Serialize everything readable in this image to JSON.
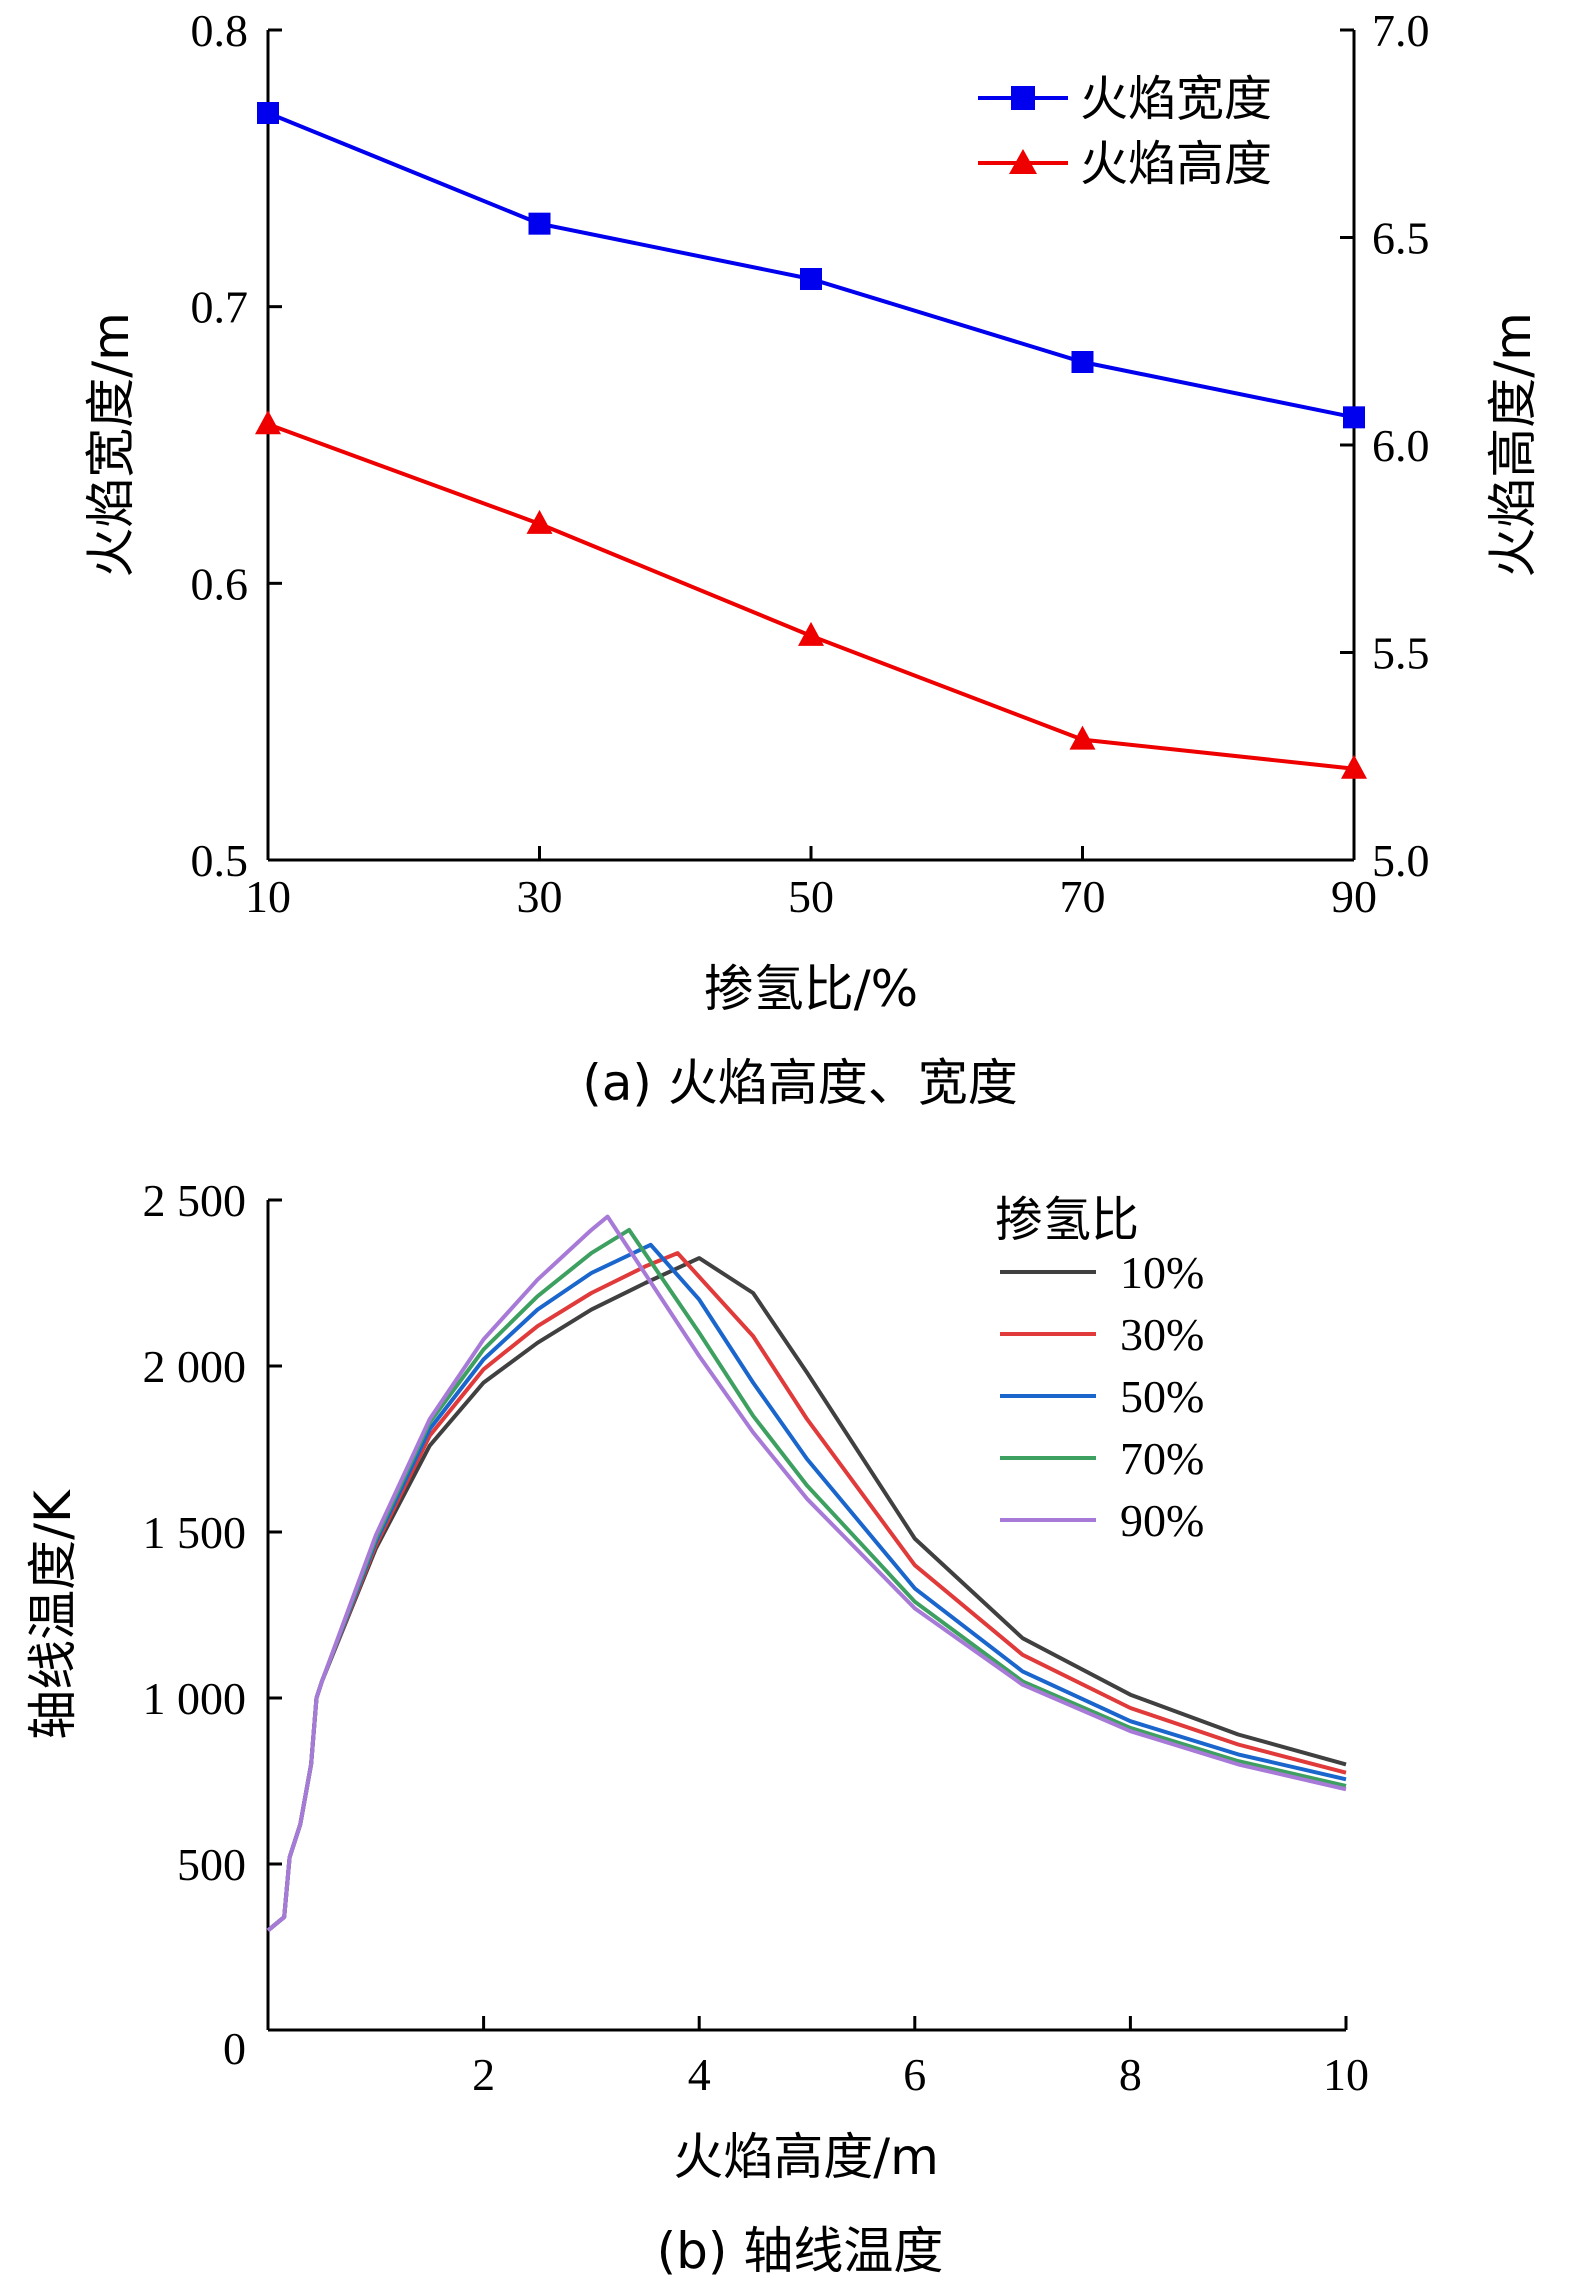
{
  "chart_data": [
    {
      "type": "line",
      "caption": "(a) 火焰高度、宽度",
      "xlabel": "掺氢比/%",
      "ylabel_left": "火焰宽度/m",
      "ylabel_right": "火焰高度/m",
      "x": [
        10,
        30,
        50,
        70,
        90
      ],
      "x_ticks": [
        "10",
        "30",
        "50",
        "70",
        "90"
      ],
      "ylim_left": [
        0.5,
        0.8
      ],
      "y_ticks_left": [
        "0.5",
        "0.6",
        "0.7",
        "0.8"
      ],
      "ylim_right": [
        5.0,
        7.0
      ],
      "y_ticks_right": [
        "5.0",
        "5.5",
        "6.0",
        "6.5",
        "7.0"
      ],
      "legend_position": "top-right",
      "series": [
        {
          "name": "火焰宽度",
          "axis": "left",
          "color": "#0000ee",
          "marker": "square",
          "values": [
            0.77,
            0.73,
            0.71,
            0.68,
            0.66
          ]
        },
        {
          "name": "火焰高度",
          "axis": "right",
          "color": "#ee0000",
          "marker": "triangle",
          "values": [
            6.05,
            5.81,
            5.54,
            5.29,
            5.22
          ]
        }
      ]
    },
    {
      "type": "line",
      "caption": "(b) 轴线温度",
      "xlabel": "火焰高度/m",
      "ylabel": "轴线温度/K",
      "xlim": [
        0,
        10
      ],
      "x_ticks": [
        "0",
        "2",
        "4",
        "6",
        "8",
        "10"
      ],
      "ylim": [
        0,
        2500
      ],
      "y_ticks": [
        "0",
        "500",
        "1 000",
        "1 500",
        "2 000",
        "2 500"
      ],
      "legend_title": "掺氢比",
      "legend_position": "top-right",
      "series": [
        {
          "name": "10%",
          "color": "#404040",
          "peak": [
            4.0,
            2325
          ],
          "end": [
            10,
            800
          ],
          "x": [
            0,
            0.15,
            0.2,
            0.3,
            0.4,
            0.45,
            0.5,
            1.0,
            1.5,
            2.0,
            2.5,
            3.0,
            3.5,
            4.0,
            4.5,
            5,
            6,
            7,
            8,
            9,
            10
          ],
          "y": [
            300,
            340,
            520,
            620,
            800,
            1000,
            1050,
            1450,
            1760,
            1950,
            2070,
            2170,
            2250,
            2325,
            2220,
            1980,
            1480,
            1180,
            1010,
            890,
            800
          ]
        },
        {
          "name": "30%",
          "color": "#e03a3a",
          "peak": [
            3.8,
            2340
          ],
          "end": [
            10,
            775
          ],
          "x": [
            0,
            0.15,
            0.2,
            0.3,
            0.4,
            0.45,
            0.5,
            1.0,
            1.5,
            2.0,
            2.5,
            3.0,
            3.5,
            3.8,
            4.5,
            5,
            6,
            7,
            8,
            9,
            10
          ],
          "y": [
            300,
            340,
            520,
            620,
            800,
            1000,
            1050,
            1460,
            1790,
            1990,
            2120,
            2220,
            2300,
            2340,
            2090,
            1840,
            1400,
            1130,
            970,
            860,
            775
          ]
        },
        {
          "name": "50%",
          "color": "#1a66cc",
          "peak": [
            3.55,
            2365
          ],
          "end": [
            10,
            755
          ],
          "x": [
            0,
            0.15,
            0.2,
            0.3,
            0.4,
            0.45,
            0.5,
            1.0,
            1.5,
            2.0,
            2.5,
            3.0,
            3.55,
            4.0,
            4.5,
            5,
            6,
            7,
            8,
            9,
            10
          ],
          "y": [
            300,
            340,
            520,
            620,
            800,
            1000,
            1050,
            1470,
            1810,
            2020,
            2170,
            2280,
            2365,
            2200,
            1950,
            1720,
            1330,
            1080,
            930,
            830,
            755
          ]
        },
        {
          "name": "70%",
          "color": "#3da060",
          "peak": [
            3.35,
            2410
          ],
          "end": [
            10,
            735
          ],
          "x": [
            0,
            0.15,
            0.2,
            0.3,
            0.4,
            0.45,
            0.5,
            1.0,
            1.5,
            2.0,
            2.5,
            3.0,
            3.35,
            4.0,
            4.5,
            5,
            6,
            7,
            8,
            9,
            10
          ],
          "y": [
            300,
            340,
            520,
            620,
            800,
            1000,
            1050,
            1480,
            1830,
            2050,
            2210,
            2340,
            2410,
            2100,
            1850,
            1640,
            1290,
            1050,
            910,
            810,
            735
          ]
        },
        {
          "name": "90%",
          "color": "#a87ad8",
          "peak": [
            3.15,
            2450
          ],
          "end": [
            10,
            725
          ],
          "x": [
            0,
            0.15,
            0.2,
            0.3,
            0.4,
            0.45,
            0.5,
            1.0,
            1.5,
            2.0,
            2.5,
            3.0,
            3.15,
            4.0,
            4.5,
            5,
            6,
            7,
            8,
            9,
            10
          ],
          "y": [
            300,
            340,
            520,
            620,
            800,
            1000,
            1050,
            1490,
            1840,
            2080,
            2260,
            2410,
            2450,
            2030,
            1800,
            1600,
            1270,
            1040,
            900,
            800,
            725
          ]
        }
      ]
    }
  ]
}
